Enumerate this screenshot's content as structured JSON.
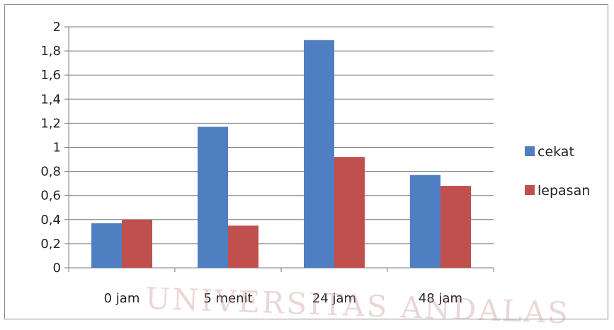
{
  "chart_data": {
    "type": "bar",
    "categories": [
      "0 jam",
      "5 menit",
      "24 jam",
      "48 jam"
    ],
    "series": [
      {
        "name": "cekat",
        "values": [
          0.37,
          1.17,
          1.89,
          0.77
        ],
        "color": "#4f7ec1"
      },
      {
        "name": "lepasan",
        "values": [
          0.4,
          0.35,
          0.92,
          0.68
        ],
        "color": "#c0504d"
      }
    ],
    "y_ticks": [
      "0",
      "0,2",
      "0,4",
      "0,6",
      "0,8",
      "1",
      "1,2",
      "1,4",
      "1,6",
      "1,8",
      "2"
    ],
    "ylim": [
      0,
      2
    ],
    "grid": true,
    "legend_position": "right"
  },
  "watermark": "UNIVERSITAS ANDALAS"
}
